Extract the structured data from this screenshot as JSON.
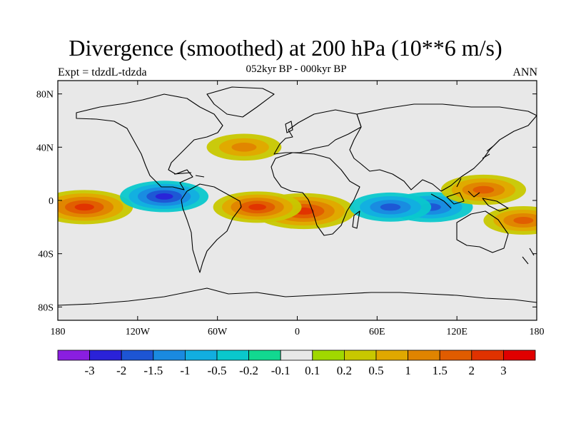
{
  "header": {
    "title": "Divergence (smoothed) at 200 hPa (10**6 m/s)",
    "subtitle": "052kyr BP - 000kyr BP",
    "left_label": "Expt = tdzdL-tdzda",
    "right_label": "ANN"
  },
  "chart_data": {
    "type": "heatmap",
    "title": "Divergence (smoothed) at 200 hPa (10**6 m/s)",
    "subtitle": "052kyr BP - 000kyr BP",
    "projection": "cylindrical equidistant",
    "xlabel": "",
    "ylabel": "",
    "x_range": [
      -180,
      180
    ],
    "y_range": [
      -90,
      90
    ],
    "x_ticks": [
      {
        "value": -180,
        "label": "180"
      },
      {
        "value": -120,
        "label": "120W"
      },
      {
        "value": -60,
        "label": "60W"
      },
      {
        "value": 0,
        "label": "0"
      },
      {
        "value": 60,
        "label": "60E"
      },
      {
        "value": 120,
        "label": "120E"
      },
      {
        "value": 180,
        "label": "180"
      }
    ],
    "y_ticks": [
      {
        "value": 80,
        "label": "80N"
      },
      {
        "value": 40,
        "label": "40N"
      },
      {
        "value": 0,
        "label": "0"
      },
      {
        "value": -40,
        "label": "40S"
      },
      {
        "value": -80,
        "label": "80S"
      }
    ],
    "colorbar": {
      "levels": [
        "-3",
        "-2",
        "-1.5",
        "-1",
        "-0.5",
        "-0.2",
        "-0.1",
        "0.1",
        "0.2",
        "0.5",
        "1",
        "1.5",
        "2",
        "3"
      ],
      "colors": [
        "#8a1ee0",
        "#2a22d8",
        "#1d55d4",
        "#1a8ae0",
        "#12aee0",
        "#0ac8cc",
        "#12d890",
        "#e8e8e8",
        "#a0d800",
        "#c8c800",
        "#e0a800",
        "#e08400",
        "#e05c00",
        "#e03200",
        "#e00000"
      ]
    },
    "features": [
      {
        "region": "central Pacific south of equator",
        "lon": -160,
        "lat": -5,
        "value": 2.5
      },
      {
        "region": "eastern tropical Atlantic / Africa coast",
        "lon": 5,
        "lat": -8,
        "value": 2.8
      },
      {
        "region": "tropical South America / Atlantic",
        "lon": -30,
        "lat": -5,
        "value": 2.0
      },
      {
        "region": "eastern equatorial Pacific",
        "lon": -100,
        "lat": 3,
        "value": -2.0
      },
      {
        "region": "Maritime continent",
        "lon": 100,
        "lat": -5,
        "value": -1.8
      },
      {
        "region": "western Pacific north of equator",
        "lon": 140,
        "lat": 8,
        "value": 1.8
      },
      {
        "region": "Indian Ocean",
        "lon": 70,
        "lat": -5,
        "value": -1.6
      },
      {
        "region": "North Atlantic / Europe",
        "lon": -40,
        "lat": 40,
        "value": 1.2
      },
      {
        "region": "western Pacific at 20S",
        "lon": 170,
        "lat": -15,
        "value": 1.5
      }
    ]
  }
}
